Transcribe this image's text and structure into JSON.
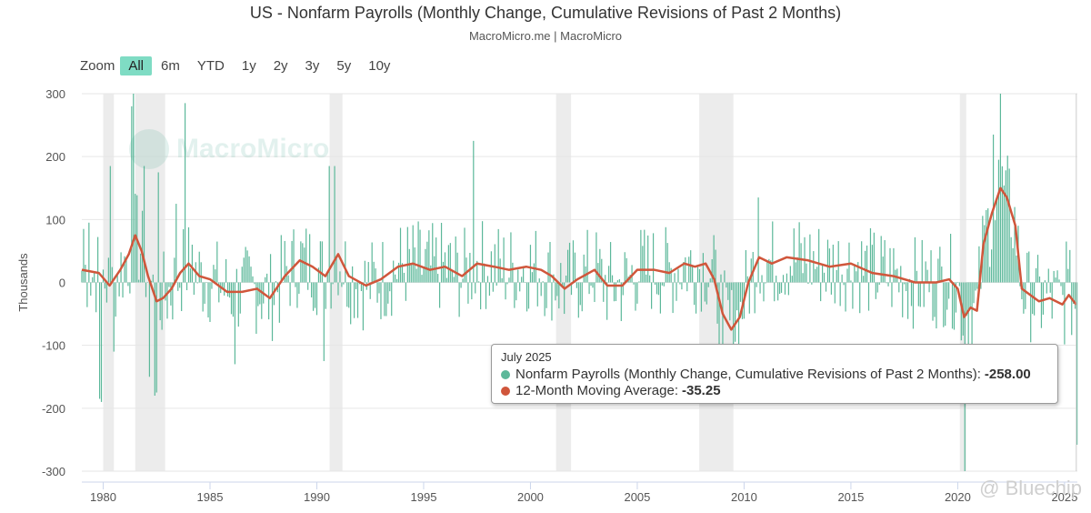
{
  "title": "US - Nonfarm Payrolls (Monthly Change, Cumulative Revisions of Past 2 Months)",
  "subtitle": "MacroMicro.me | MacroMicro",
  "zoom": {
    "label": "Zoom",
    "buttons": [
      "All",
      "6m",
      "YTD",
      "1y",
      "2y",
      "3y",
      "5y",
      "10y"
    ],
    "active": "All"
  },
  "watermark": "MacroMicro",
  "corner_mark": "@ Bluechip",
  "colors": {
    "bars": "#5cb89a",
    "ma": "#d0563b",
    "recession": "#ececec",
    "active_zoom": "#7fdcc4"
  },
  "tooltip": {
    "date": "July 2025",
    "series1_label": "Nonfarm Payrolls (Monthly Change, Cumulative Revisions of Past 2 Months):",
    "series1_value": "-258.00",
    "series2_label": "12-Month Moving Average:",
    "series2_value": "-35.25"
  },
  "chart_data": {
    "type": "bar",
    "ylabel": "Thousands",
    "ylim": [
      -300,
      300
    ],
    "yticks": [
      300,
      200,
      100,
      0,
      -100,
      -200,
      -300
    ],
    "xlim": [
      1979,
      2025.6
    ],
    "xticks": [
      1980,
      1985,
      1990,
      1995,
      2000,
      2005,
      2010,
      2015,
      2020,
      2025
    ],
    "recessions": [
      [
        1980.0,
        1980.5
      ],
      [
        1981.5,
        1982.9
      ],
      [
        1990.6,
        1991.2
      ],
      [
        2001.2,
        2001.9
      ],
      [
        2007.9,
        2009.5
      ],
      [
        2020.1,
        2020.4
      ]
    ],
    "series": [
      {
        "name": "Nonfarm Payrolls (Monthly Change, Cumulative Revisions of Past 2 Months)",
        "type": "bar",
        "spikes": [
          [
            1979.1,
            85
          ],
          [
            1979.3,
            95
          ],
          [
            1979.8,
            -185
          ],
          [
            1979.9,
            -190
          ],
          [
            1980.3,
            185
          ],
          [
            1980.5,
            -110
          ],
          [
            1981.3,
            280
          ],
          [
            1981.4,
            305
          ],
          [
            1981.9,
            185
          ],
          [
            1982.2,
            -150
          ],
          [
            1982.4,
            -180
          ],
          [
            1982.5,
            -175
          ],
          [
            1982.6,
            175
          ],
          [
            1983.4,
            125
          ],
          [
            1983.8,
            285
          ],
          [
            1984.2,
            60
          ],
          [
            1986.2,
            -130
          ],
          [
            1990.3,
            -125
          ],
          [
            1990.6,
            185
          ],
          [
            1990.8,
            185
          ],
          [
            1997.3,
            225
          ],
          [
            2009.0,
            -100
          ],
          [
            2010.7,
            135
          ],
          [
            2020.3,
            -300
          ],
          [
            2021.3,
            115
          ],
          [
            2021.7,
            235
          ],
          [
            2021.9,
            195
          ],
          [
            2022.0,
            300
          ],
          [
            2025.1,
            65
          ],
          [
            2025.55,
            -258
          ]
        ]
      },
      {
        "name": "12-Month Moving Average",
        "type": "line",
        "x": [
          1979.0,
          1979.8,
          1980.3,
          1980.8,
          1981.2,
          1981.5,
          1981.8,
          1982.1,
          1982.5,
          1982.8,
          1983.2,
          1983.6,
          1984.0,
          1984.5,
          1985.0,
          1985.8,
          1986.5,
          1987.2,
          1987.8,
          1988.5,
          1989.2,
          1989.8,
          1990.4,
          1991.0,
          1991.5,
          1992.3,
          1993.0,
          1993.8,
          1994.5,
          1995.3,
          1996.0,
          1996.8,
          1997.5,
          1998.3,
          1999.0,
          1999.8,
          2000.5,
          2001.0,
          2001.6,
          2002.2,
          2003.0,
          2003.6,
          2004.3,
          2005.0,
          2005.8,
          2006.5,
          2007.2,
          2007.7,
          2008.2,
          2008.6,
          2009.0,
          2009.4,
          2009.8,
          2010.2,
          2010.7,
          2011.3,
          2012.0,
          2013.0,
          2014.0,
          2015.0,
          2016.0,
          2017.0,
          2018.0,
          2019.0,
          2019.6,
          2020.0,
          2020.3,
          2020.6,
          2020.9,
          2021.2,
          2021.6,
          2022.0,
          2022.3,
          2022.7,
          2023.0,
          2023.4,
          2023.8,
          2024.3,
          2024.9,
          2025.2,
          2025.55
        ],
        "y": [
          20,
          15,
          -5,
          20,
          45,
          75,
          50,
          10,
          -30,
          -25,
          -10,
          15,
          30,
          10,
          5,
          -15,
          -15,
          -10,
          -25,
          10,
          35,
          25,
          10,
          45,
          10,
          -5,
          5,
          25,
          30,
          20,
          25,
          10,
          30,
          25,
          20,
          25,
          20,
          10,
          -10,
          5,
          20,
          -5,
          -5,
          20,
          20,
          15,
          30,
          25,
          30,
          5,
          -50,
          -75,
          -55,
          0,
          40,
          30,
          40,
          35,
          25,
          30,
          15,
          10,
          0,
          0,
          5,
          -10,
          -55,
          -40,
          -45,
          60,
          110,
          150,
          135,
          90,
          -10,
          -20,
          -30,
          -25,
          -35,
          -20,
          -35.25
        ]
      }
    ]
  }
}
